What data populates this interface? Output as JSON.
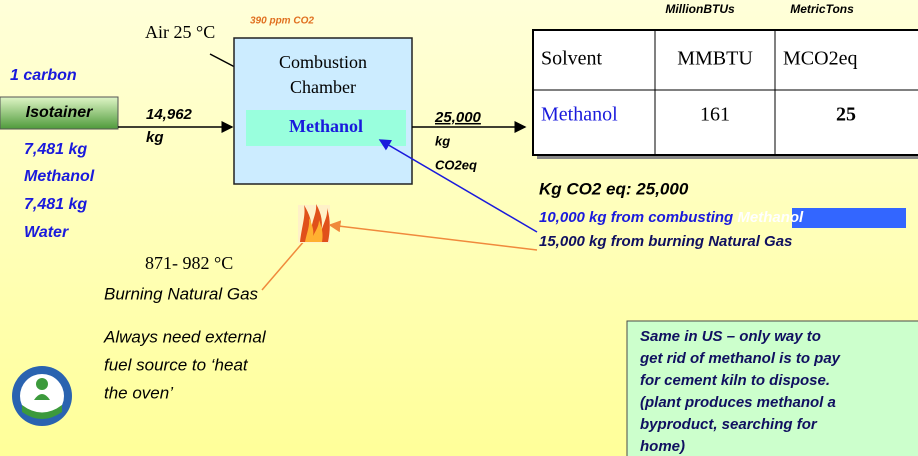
{
  "source": {
    "line1": "1 carbon",
    "container": "Isotainer",
    "contents": [
      "7,481 kg",
      "Methanol",
      "7,481 kg",
      "Water"
    ]
  },
  "input_flow": [
    "14,962",
    "kg"
  ],
  "air": {
    "label": "Air 25 °C",
    "note": "390 ppm CO2"
  },
  "chamber": {
    "title": [
      "Combustion",
      "Chamber"
    ],
    "solvent": "Methanol"
  },
  "output_flow": [
    "25,000",
    "kg",
    "CO2eq"
  ],
  "table": {
    "units": [
      "MillionBTUs",
      "MetricTons"
    ],
    "header": [
      "Solvent",
      "MMBTU",
      "MCO2eq"
    ],
    "rows": [
      [
        "Methanol",
        "161",
        "25"
      ]
    ]
  },
  "summary": {
    "total": "Kg CO2 eq: 25,000",
    "line2": "10,000 kg from combusting ",
    "line2_highlight": "Methanol",
    "line3": "15,000 kg from burning Natural Gas"
  },
  "heat": {
    "temperature": "871- 982 °C",
    "label": "Burning Natural Gas",
    "note": [
      "Always need external",
      "fuel source to ‘heat",
      "the oven’"
    ]
  },
  "callout": [
    "Same in US – only way to",
    "get rid of methanol is to pay",
    "for cement kiln to dispose.",
    "(plant produces methanol a",
    "byproduct, searching for",
    "home)"
  ]
}
